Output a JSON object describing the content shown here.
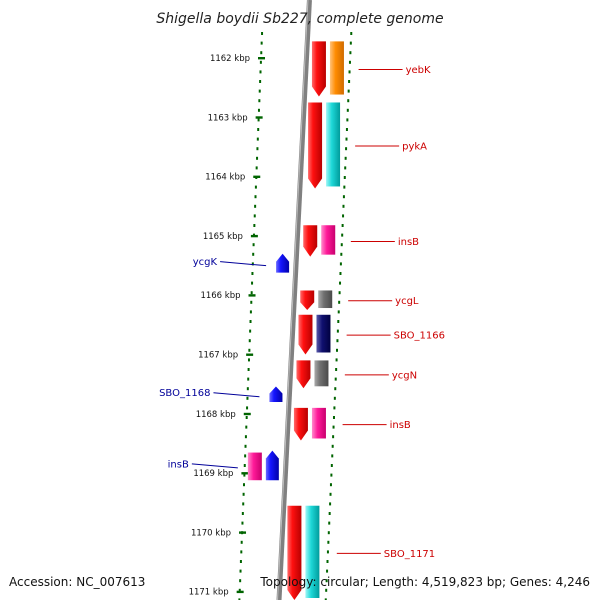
{
  "header": {
    "title": "Shigella boydii Sb227, complete genome"
  },
  "footer": {
    "accession": "Accession: NC_007613",
    "topology": "Topology: circular; Length: 4,519,823 bp; Genes: 4,246"
  },
  "colors": {
    "backbone": "#808080",
    "tick": "#006400",
    "cds": "#ee0000",
    "reverse_gene": "#0000ee",
    "label_right": "#cc0000",
    "label_left": "#000099",
    "cyan_feature": "#00c8c8",
    "orange_feature": "#ff8800",
    "magenta_feature": "#ee1188",
    "grey_feature": "#6e6e6e",
    "navy_feature": "#000080"
  },
  "map": {
    "ruler_kbp": [
      1162,
      1163,
      1164,
      1165,
      1166,
      1167,
      1168,
      1169,
      1170,
      1171
    ],
    "ruler_labels": [
      "1162 kbp",
      "1163 kbp",
      "1164 kbp",
      "1165 kbp",
      "1166 kbp",
      "1167 kbp",
      "1168 kbp",
      "1169 kbp",
      "1170 kbp",
      "1171 kbp"
    ],
    "genes_right": [
      {
        "label": "yebK",
        "start_kbp": 1161.72,
        "end_kbp": 1162.65,
        "feature": "orange"
      },
      {
        "label": "pykA",
        "start_kbp": 1162.75,
        "end_kbp": 1164.2,
        "feature": "cyan"
      },
      {
        "label": "insB",
        "start_kbp": 1164.82,
        "end_kbp": 1165.35,
        "feature": "magenta"
      },
      {
        "label": "ycgL",
        "start_kbp": 1165.92,
        "end_kbp": 1166.25,
        "feature": "grey"
      },
      {
        "label": "SBO_1166",
        "start_kbp": 1166.33,
        "end_kbp": 1167.0,
        "feature": "navy"
      },
      {
        "label": "ycgN",
        "start_kbp": 1167.1,
        "end_kbp": 1167.57,
        "feature": "grey"
      },
      {
        "label": "insB",
        "start_kbp": 1167.9,
        "end_kbp": 1168.45,
        "feature": "magenta"
      },
      {
        "label": "SBO_1171",
        "start_kbp": 1169.55,
        "end_kbp": 1171.3,
        "feature": "cyan"
      }
    ],
    "genes_left": [
      {
        "label": "ycgK",
        "start_kbp": 1165.3,
        "end_kbp": 1165.62
      },
      {
        "label": "SBO_1168",
        "start_kbp": 1167.54,
        "end_kbp": 1167.8
      },
      {
        "label": "insB",
        "start_kbp": 1168.62,
        "end_kbp": 1169.12,
        "feature": "magenta"
      }
    ]
  }
}
